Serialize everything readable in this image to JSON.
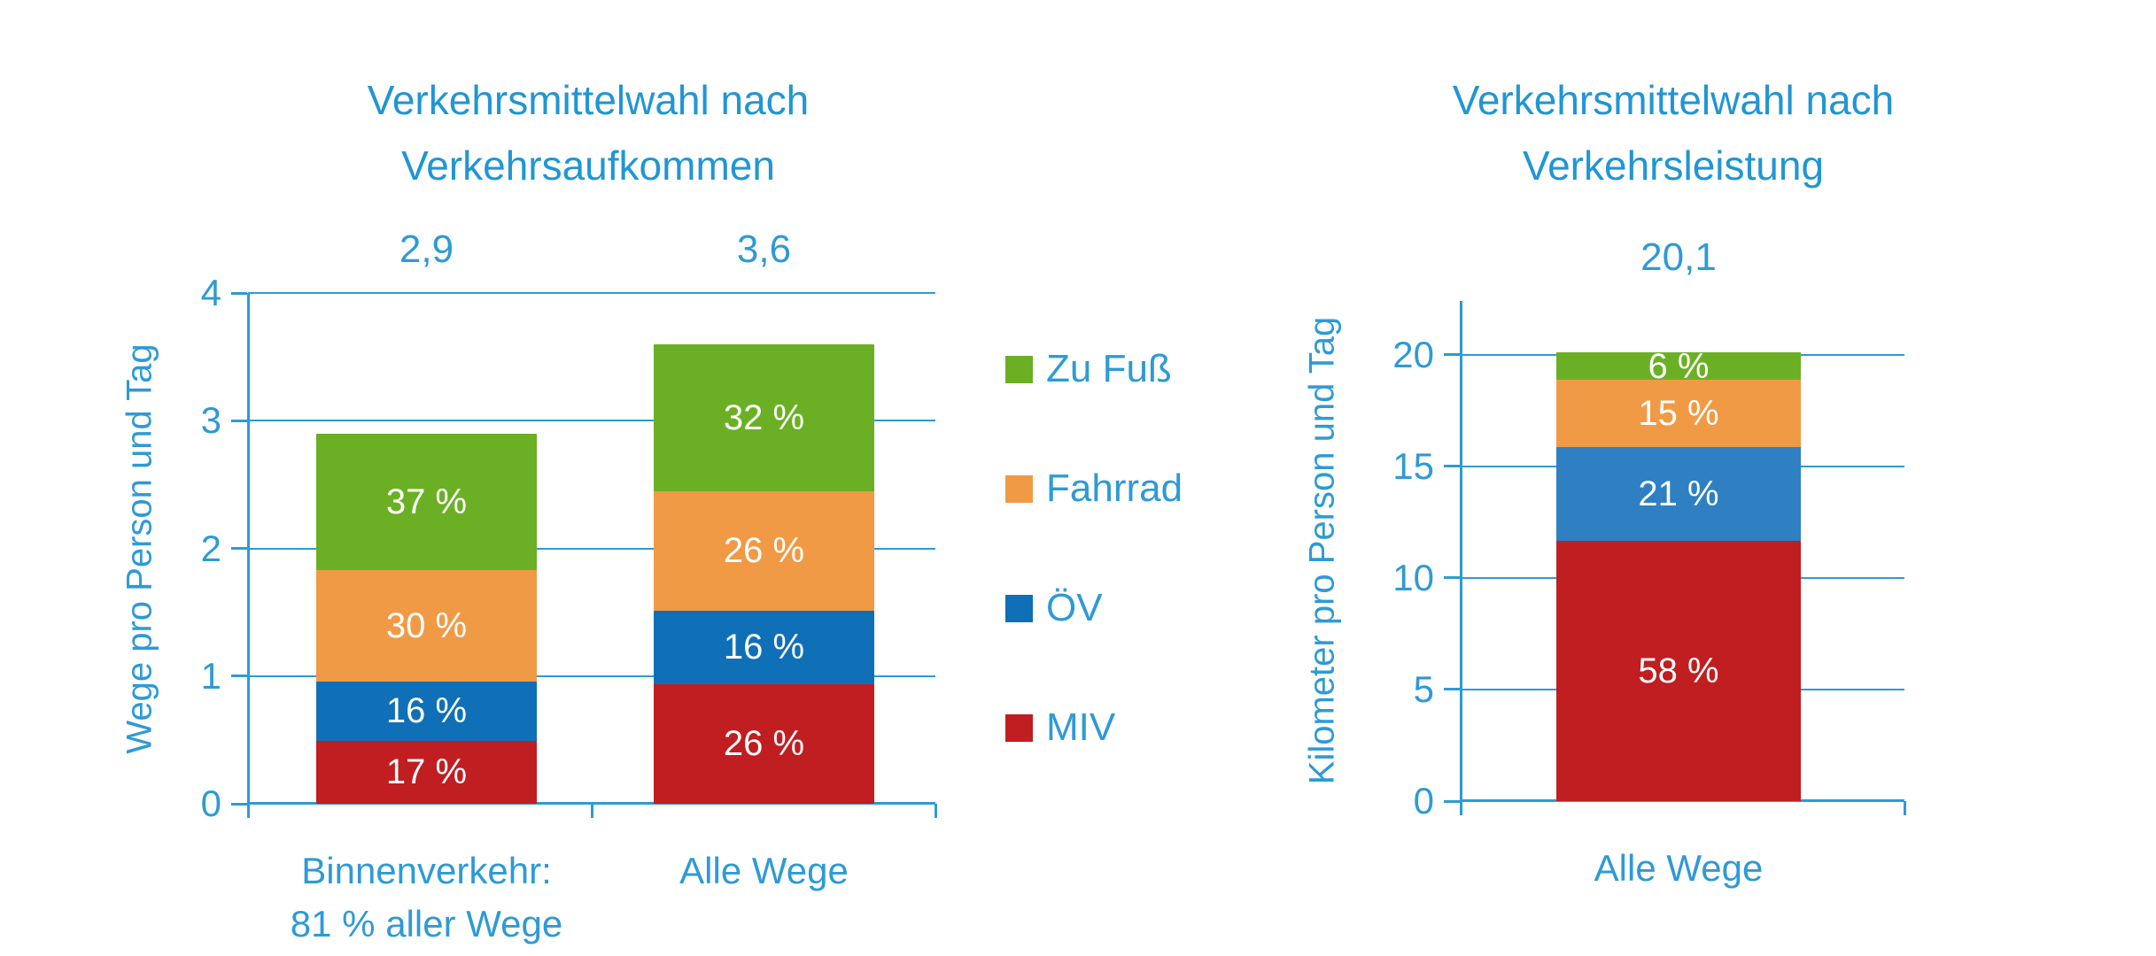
{
  "colors": {
    "background": "#ffffff",
    "axis_blue": "#2e9ad6",
    "text_blue": "#2196d3",
    "segment_label_white": "#ffffff",
    "zu_fuss_green": "#6bb024",
    "fahrrad_orange": "#f09a46",
    "oev_blue_dark": "#0f70b7",
    "oev_blue_light": "#2e80c3",
    "miv_red": "#c01e21"
  },
  "legend": {
    "items": [
      {
        "label": "Zu Fuß",
        "color": "#6bb024"
      },
      {
        "label": "Fahrrad",
        "color": "#f09a46"
      },
      {
        "label": "ÖV",
        "color": "#0f70b7"
      },
      {
        "label": "MIV",
        "color": "#c01e21"
      }
    ]
  },
  "chart_data": [
    {
      "type": "bar",
      "stacked": true,
      "title": "Verkehrsmittelwahl nach Verkehrsaufkommen",
      "title_lines": [
        "Verkehrsmittelwahl nach",
        "Verkehrsaufkommen"
      ],
      "ylabel": "Wege pro Person und Tag",
      "xlabel": "",
      "ylim": [
        0,
        4
      ],
      "yticks": [
        0,
        1,
        2,
        3,
        4
      ],
      "grid": true,
      "legend_position": "right of chart",
      "categories": [
        {
          "label_lines": [
            "Binnenverkehr:",
            "81 % aller Wege"
          ],
          "total": 2.9,
          "total_label": "2,9",
          "segments": [
            {
              "name": "MIV",
              "percent": 17,
              "label": "17 %",
              "color": "#c01e21"
            },
            {
              "name": "ÖV",
              "percent": 16,
              "label": "16 %",
              "color": "#0f70b7"
            },
            {
              "name": "Fahrrad",
              "percent": 30,
              "label": "30 %",
              "color": "#f09a46"
            },
            {
              "name": "Zu Fuß",
              "percent": 37,
              "label": "37 %",
              "color": "#6bb024"
            }
          ]
        },
        {
          "label_lines": [
            "Alle Wege"
          ],
          "total": 3.6,
          "total_label": "3,6",
          "segments": [
            {
              "name": "MIV",
              "percent": 26,
              "label": "26 %",
              "color": "#c01e21"
            },
            {
              "name": "ÖV",
              "percent": 16,
              "label": "16 %",
              "color": "#0f70b7"
            },
            {
              "name": "Fahrrad",
              "percent": 26,
              "label": "26 %",
              "color": "#f09a46"
            },
            {
              "name": "Zu Fuß",
              "percent": 32,
              "label": "32 %",
              "color": "#6bb024"
            }
          ]
        }
      ]
    },
    {
      "type": "bar",
      "stacked": true,
      "title": "Verkehrsmittelwahl nach Verkehrsleistung",
      "title_lines": [
        "Verkehrsmittelwahl nach",
        "Verkehrsleistung"
      ],
      "ylabel": "Kilometer pro Person und Tag",
      "xlabel": "",
      "ylim": [
        0,
        20
      ],
      "yticks": [
        0,
        5,
        10,
        15,
        20
      ],
      "grid": true,
      "categories": [
        {
          "label_lines": [
            "Alle Wege"
          ],
          "total": 20.1,
          "total_label": "20,1",
          "segments": [
            {
              "name": "MIV",
              "percent": 58,
              "label": "58 %",
              "color": "#c01e21"
            },
            {
              "name": "ÖV",
              "percent": 21,
              "label": "21 %",
              "color": "#2e80c3"
            },
            {
              "name": "Fahrrad",
              "percent": 15,
              "label": "15 %",
              "color": "#f09a46"
            },
            {
              "name": "Zu Fuß",
              "percent": 6,
              "label": "6 %",
              "color": "#6bb024"
            }
          ]
        }
      ]
    }
  ]
}
